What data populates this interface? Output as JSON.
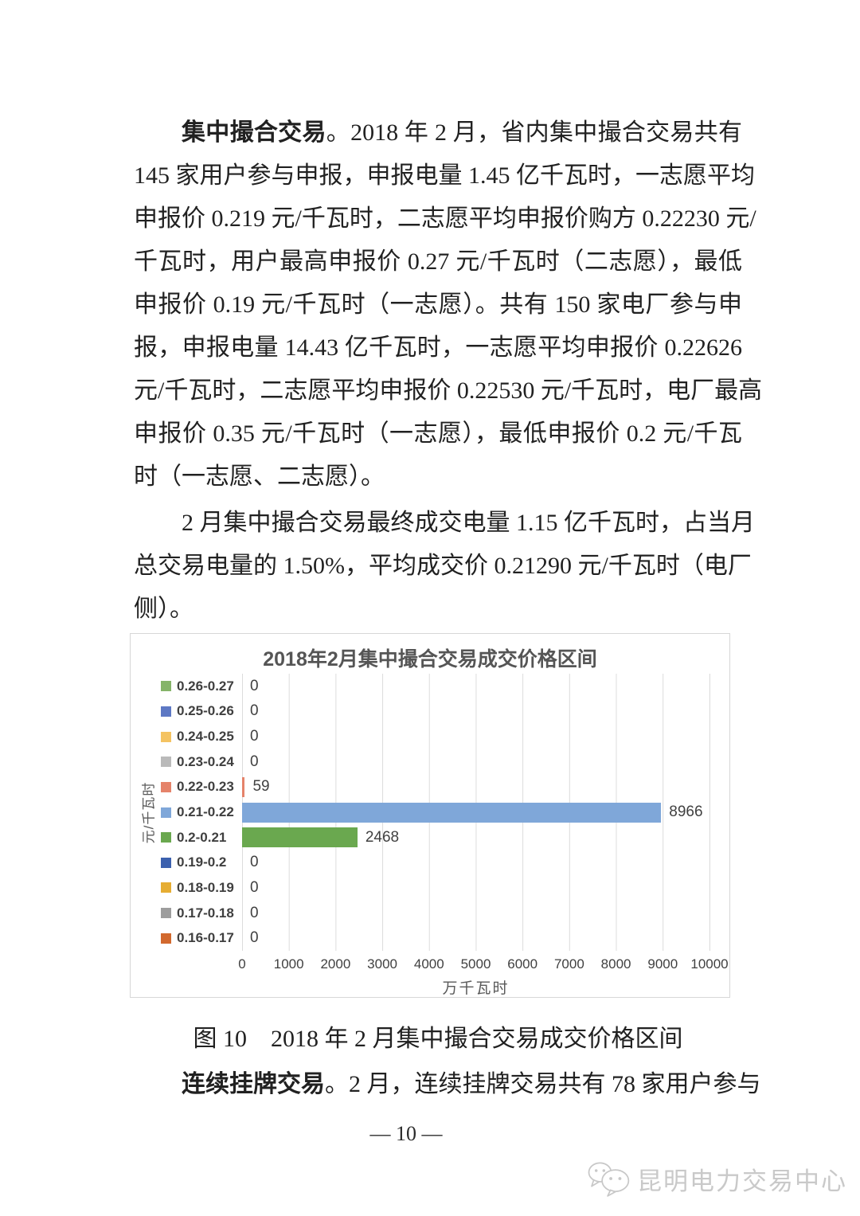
{
  "document": {
    "paragraphs": [
      {
        "lines": [
          {
            "indent": true,
            "bold": "集中撮合交易",
            "text": "。2018 年 2 月，省内集中撮合交易共有"
          },
          {
            "text": "145 家用户参与申报，申报电量 1.45 亿千瓦时，一志愿平均"
          },
          {
            "text": "申报价 0.219 元/千瓦时，二志愿平均申报价购方 0.22230 元/"
          },
          {
            "text": "千瓦时，用户最高申报价 0.27 元/千瓦时（二志愿），最低"
          },
          {
            "text": "申报价 0.19 元/千瓦时（一志愿）。共有 150 家电厂参与申"
          },
          {
            "text": "报，申报电量 14.43 亿千瓦时，一志愿平均申报价 0.22626"
          },
          {
            "text": "元/千瓦时，二志愿平均申报价 0.22530 元/千瓦时，电厂最高"
          },
          {
            "text": "申报价 0.35 元/千瓦时（一志愿），最低申报价 0.2 元/千瓦"
          },
          {
            "text": "时（一志愿、二志愿）。",
            "justify": false
          }
        ]
      },
      {
        "lines": [
          {
            "indent": true,
            "text": "2 月集中撮合交易最终成交电量 1.15 亿千瓦时，占当月"
          },
          {
            "text": "总交易电量的 1.50%，平均成交价 0.21290 元/千瓦时（电厂"
          },
          {
            "text": "侧）。",
            "justify": false
          }
        ]
      },
      {
        "lines": [
          {
            "indent": true,
            "bold": "连续挂牌交易",
            "text": "。2 月，连续挂牌交易共有 78 家用户参与"
          }
        ]
      }
    ],
    "figure_caption": {
      "label": "图 10",
      "text": "2018 年 2 月集中撮合交易成交价格区间"
    },
    "page_number": "— 10 —",
    "watermark": {
      "brand": "昆明电力交易中心",
      "icon": "wechat-logo-icon"
    }
  },
  "chart_data": {
    "type": "bar",
    "orientation": "horizontal",
    "title": "2018年2月集中撮合交易成交价格区间",
    "categories": [
      "0.26-0.27",
      "0.25-0.26",
      "0.24-0.25",
      "0.23-0.24",
      "0.22-0.23",
      "0.21-0.22",
      "0.2-0.21",
      "0.19-0.2",
      "0.18-0.19",
      "0.17-0.18",
      "0.16-0.17"
    ],
    "values": [
      0,
      0,
      0,
      0,
      59,
      8966,
      2468,
      0,
      0,
      0,
      0
    ],
    "colors": [
      "#85b469",
      "#5d78c4",
      "#f4c362",
      "#bababa",
      "#e5836a",
      "#7fa7d9",
      "#6aa84f",
      "#3c61ae",
      "#e6ad33",
      "#9d9d9d",
      "#d2692e"
    ],
    "xlabel": "万千瓦时",
    "ylabel": "元/千瓦时",
    "xlim": [
      0,
      10000
    ],
    "x_ticks": [
      0,
      1000,
      2000,
      3000,
      4000,
      5000,
      6000,
      7000,
      8000,
      9000,
      10000
    ],
    "grid": true,
    "legend_position": "left-category-labels"
  }
}
